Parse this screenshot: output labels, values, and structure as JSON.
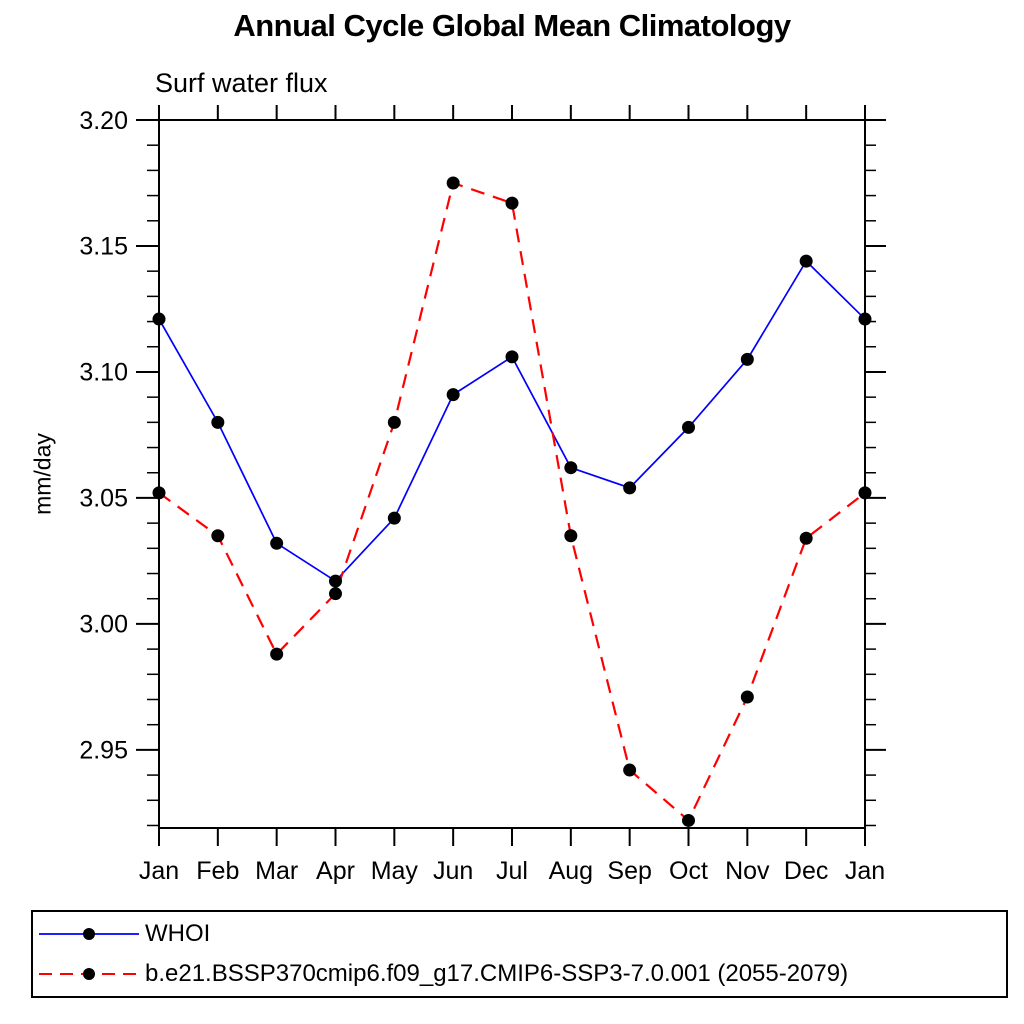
{
  "chart_data": {
    "type": "line",
    "title": "Annual Cycle Global Mean Climatology",
    "subtitle": "Surf water flux",
    "xlabel": "",
    "ylabel": "mm/day",
    "categories": [
      "Jan",
      "Feb",
      "Mar",
      "Apr",
      "May",
      "Jun",
      "Jul",
      "Aug",
      "Sep",
      "Oct",
      "Nov",
      "Dec",
      "Jan"
    ],
    "series": [
      {
        "name": "WHOI",
        "color": "#0000ff",
        "line_style": "solid",
        "marker": "circle",
        "marker_color": "#000000",
        "values": [
          3.121,
          3.08,
          3.032,
          3.017,
          3.042,
          3.091,
          3.106,
          3.062,
          3.054,
          3.078,
          3.105,
          3.144,
          3.121
        ]
      },
      {
        "name": "b.e21.BSSP370cmip6.f09_g17.CMIP6-SSP3-7.0.001 (2055-2079)",
        "color": "#ff0000",
        "line_style": "dashed",
        "marker": "circle",
        "marker_color": "#000000",
        "values": [
          3.052,
          3.035,
          2.988,
          3.012,
          3.08,
          3.175,
          3.167,
          3.035,
          2.942,
          2.922,
          2.971,
          3.034,
          3.052
        ]
      }
    ],
    "yticks": [
      {
        "value": 2.95,
        "label": "2.95"
      },
      {
        "value": 3.0,
        "label": "3.00"
      },
      {
        "value": 3.05,
        "label": "3.05"
      },
      {
        "value": 3.1,
        "label": "3.10"
      },
      {
        "value": 3.15,
        "label": "3.15"
      },
      {
        "value": 3.2,
        "label": "3.20"
      }
    ],
    "minor_tick_step": 0.01,
    "ylim": [
      2.919,
      3.2
    ],
    "grid": false,
    "tick_direction": "out",
    "legend_position": "bottom",
    "axis_color": "#000000"
  }
}
